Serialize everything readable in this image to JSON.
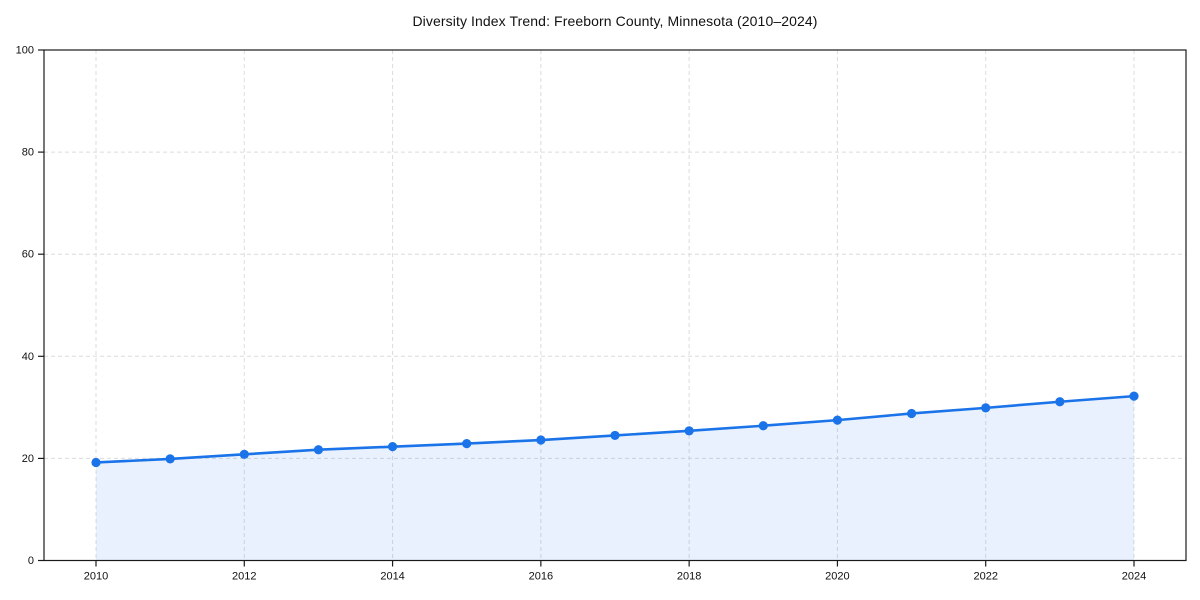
{
  "chart_data": {
    "type": "area",
    "title": "Diversity Index Trend: Freeborn County, Minnesota (2010–2024)",
    "x": [
      2010,
      2011,
      2012,
      2013,
      2014,
      2015,
      2016,
      2017,
      2018,
      2019,
      2020,
      2021,
      2022,
      2023,
      2024
    ],
    "series": [
      {
        "name": "Diversity Index",
        "values": [
          19.2,
          19.9,
          20.8,
          21.7,
          22.3,
          22.9,
          23.6,
          24.5,
          25.4,
          26.4,
          27.5,
          28.8,
          29.9,
          31.1,
          32.2
        ]
      }
    ],
    "xlabel": "",
    "ylabel": "",
    "ylim": [
      0,
      100
    ],
    "yticks": [
      0,
      20,
      40,
      60,
      80,
      100
    ],
    "xticks": [
      2010,
      2012,
      2014,
      2016,
      2018,
      2020,
      2022,
      2024
    ],
    "grid": "dashed-both-axes",
    "legend": "none",
    "marker": "circle",
    "colors": {
      "line": "#1a73e8",
      "marker": "#1a73e8",
      "area_fill": "rgba(26,115,232,0.10)",
      "grid": "#dcdcdc",
      "axis": "#1a1a1a",
      "text": "#111111"
    }
  }
}
